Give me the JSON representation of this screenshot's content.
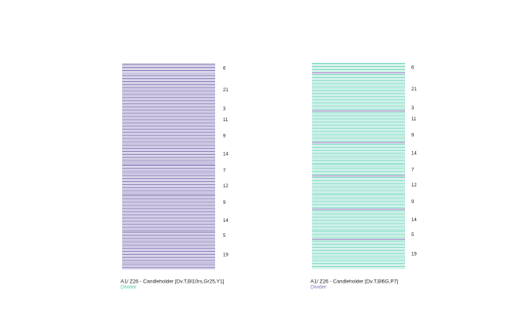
{
  "panels": [
    {
      "groups": [
        6,
        21,
        3,
        11,
        9,
        14,
        7,
        12,
        9,
        14,
        5,
        19
      ],
      "colors": [
        "#6f5fa8",
        "#a99fcf"
      ],
      "caption": "A1/ Z26 - Candleholder [Dv.T,Bl10rs,Gr25,Y1]",
      "subcaption": "Divider",
      "subcaption_color": "#4fc9a8"
    },
    {
      "groups": [
        6,
        21,
        3,
        11,
        9,
        14,
        7,
        12,
        9,
        14,
        5,
        19
      ],
      "colors": [
        "#5fd1b5",
        "#9fe3d2"
      ],
      "accent": "#8a6fb5",
      "caption": "A1/ Z26 - Candleholder [Dv.T,Bl6G,P7]",
      "subcaption": "Divider",
      "subcaption_color": "#8a6fb5"
    }
  ]
}
